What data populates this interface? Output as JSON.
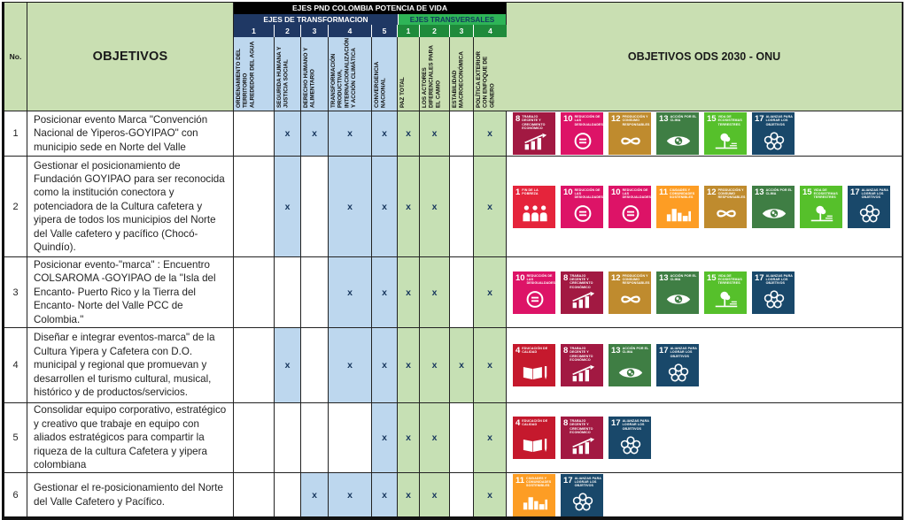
{
  "header": {
    "no_label": "No.",
    "objetivos_label": "OBJETIVOS",
    "ods_label": "OBJETIVOS ODS 2030 - ONU",
    "ejes_title": "EJES PND COLOMBIA POTENCIA DE VIDA",
    "transformacion_label": "EJES DE TRANSFORMACION",
    "transversales_label": "EJES TRANSVERSALES",
    "transformacion_numbers": [
      "1",
      "2",
      "3",
      "4",
      "5"
    ],
    "transversales_numbers": [
      "1",
      "2",
      "3",
      "4"
    ],
    "transformacion_columns": [
      "ORDENAMIENTO DEL TERRITORIO ALREDEDOR DEL AGUA",
      "SEGURIDA HUMANA Y JUSTICIA SOCIAL",
      "DERECHO HUMANO Y ALIMENTARIO",
      "TRANSFORMACIÓN PRODUCTIVA, INTERNACIONALIZACIÓN Y ACCIÓN CLIMÁTICA",
      "CONVERGENCIA NACIONAL"
    ],
    "transversales_columns": [
      "PAZ TOTAL",
      "LOS ACTORES DIFERENCIALES PARA EL CAMIO",
      "ESTABILIDAD MACROECONÓMICA",
      "POLÍTICA EXTERIOR CON ENFOQUE DE GÉNERO"
    ]
  },
  "mark_symbol": "x",
  "colors": {
    "light_green": "#C9DFB2",
    "light_blue": "#BDD7EE",
    "mark_blue_cell": "#BDD7EE",
    "mark_green_cell": "#C6E0B4",
    "navy_band": "#1F3864",
    "green_band": "#2EB457",
    "green_numbers_band": "#1F8B3B",
    "black_band": "#000000",
    "x_mark": "#17365D"
  },
  "rows": [
    {
      "no": "1",
      "objective": "Posicionar evento Marca \"Convención Nacional de Yiperos-GOYIPAO\" con municipio sede en Norte del Valle",
      "marks_t": [
        0,
        1,
        1,
        1,
        1
      ],
      "marks_v": [
        1,
        1,
        0,
        1
      ],
      "ods": [
        "8",
        "10",
        "12",
        "13",
        "15",
        "17"
      ]
    },
    {
      "no": "2",
      "objective": "Gestionar el posicionamiento de Fundación GOYIPAO para ser reconocida como la institución conectora y potenciadora de la Cultura cafetera y yipera de todos los municipios del Norte del Valle cafetero y pacífico (Chocó-Quindío).",
      "marks_t": [
        0,
        1,
        0,
        1,
        1
      ],
      "marks_v": [
        1,
        1,
        0,
        1
      ],
      "ods": [
        "1",
        "10",
        "10",
        "11",
        "12",
        "13",
        "15",
        "17"
      ]
    },
    {
      "no": "3",
      "objective": "Posicionar evento-\"marca\" : Encuentro COLSAROMA -GOYIPAO de la \"Isla del Encanto- Puerto Rico y la Tierra del Encanto- Norte del Valle PCC de Colombia.\"",
      "marks_t": [
        0,
        0,
        0,
        1,
        1
      ],
      "marks_v": [
        1,
        1,
        0,
        1
      ],
      "ods": [
        "10",
        "8",
        "12",
        "13",
        "15",
        "17"
      ]
    },
    {
      "no": "4",
      "objective": "Diseñar e integrar eventos-marca\" de la Cultura Yipera y Cafetera con D.O. municipal y regional que promuevan y desarrollen el turismo cultural, musical, histórico y de productos/servicios.",
      "marks_t": [
        0,
        1,
        0,
        1,
        1
      ],
      "marks_v": [
        1,
        1,
        1,
        1
      ],
      "ods": [
        "4",
        "8",
        "13",
        "17"
      ]
    },
    {
      "no": "5",
      "objective": "Consolidar equipo corporativo, estratégico y creativo que trabaje en equipo con aliados estratégicos para compartir la riqueza de la cultura Cafetera y yipera colombiana",
      "marks_t": [
        0,
        0,
        0,
        0,
        1
      ],
      "marks_v": [
        1,
        1,
        0,
        1
      ],
      "ods": [
        "4",
        "8",
        "17"
      ]
    },
    {
      "no": "6",
      "objective": "Gestionar el re-posicionamiento del Norte del Valle Cafetero y Pacífico.",
      "marks_t": [
        0,
        0,
        1,
        1,
        1
      ],
      "marks_v": [
        1,
        1,
        0,
        1
      ],
      "ods": [
        "11",
        "17"
      ]
    }
  ],
  "sdg_catalog": {
    "1": {
      "num": "1",
      "title": "FIN DE LA POBREZA",
      "color": "#E5243B",
      "pic": "people"
    },
    "4": {
      "num": "4",
      "title": "EDUCACIÓN DE CALIDAD",
      "color": "#C5192D",
      "pic": "book"
    },
    "8": {
      "num": "8",
      "title": "TRABAJO DECENTE Y CRECIMIENTO ECONÓMICO",
      "color": "#A21942",
      "pic": "growth"
    },
    "10": {
      "num": "10",
      "title": "REDUCCIÓN DE LAS DESIGUALDADES",
      "color": "#DD1367",
      "pic": "equality"
    },
    "11": {
      "num": "11",
      "title": "CIUDADES Y COMUNIDADES SOSTENIBLES",
      "color": "#FD9D24",
      "pic": "city"
    },
    "12": {
      "num": "12",
      "title": "PRODUCCIÓN Y CONSUMO RESPONSABLES",
      "color": "#BF8B2E",
      "pic": "infinity"
    },
    "13": {
      "num": "13",
      "title": "ACCIÓN POR EL CLIMA",
      "color": "#3F7E44",
      "pic": "eye"
    },
    "15": {
      "num": "15",
      "title": "VIDA DE ECOSISTEMAS TERRESTRES",
      "color": "#56C02B",
      "pic": "tree"
    },
    "17": {
      "num": "17",
      "title": "ALIANZAS PARA LOGRAR LOS OBJETIVOS",
      "color": "#19486A",
      "pic": "rings"
    }
  }
}
